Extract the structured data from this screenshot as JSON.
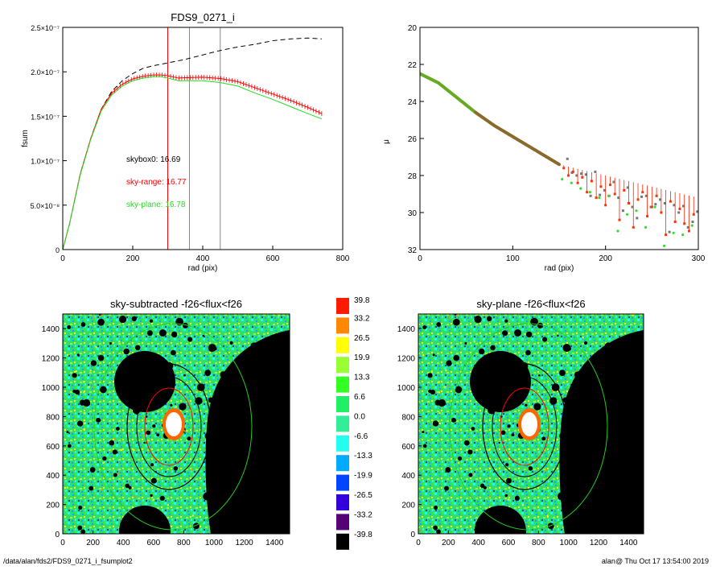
{
  "chart_data": [
    {
      "type": "line",
      "title": "FDS9_0271_i",
      "xlabel": "rad (pix)",
      "ylabel": "fsum",
      "xlim": [
        0,
        800
      ],
      "ylim": [
        0,
        2.5e-07
      ],
      "xticks": [
        "0",
        "200",
        "400",
        "600",
        "800"
      ],
      "yticks": [
        "0",
        "5.0×10⁻⁸",
        "1.0×10⁻⁷",
        "1.5×10⁻⁷",
        "2.0×10⁻⁷",
        "2.5×10⁻⁷"
      ],
      "vlines": [
        {
          "x": 300,
          "color": "#ff0000"
        },
        {
          "x": 362,
          "color": "#888888"
        },
        {
          "x": 450,
          "color": "#888888"
        }
      ],
      "annotations": [
        {
          "text": "skybox0: 16.69",
          "color": "#000000"
        },
        {
          "text": "sky-range: 16.77",
          "color": "#ff0000"
        },
        {
          "text": "sky-plane: 16.78",
          "color": "#22dd22"
        }
      ],
      "series": [
        {
          "color": "#000000",
          "style": "dashed",
          "x": [
            0,
            20,
            50,
            80,
            110,
            140,
            170,
            200,
            230,
            260,
            300,
            350,
            400,
            450,
            500,
            550,
            600,
            650,
            700,
            740
          ],
          "y": [
            0,
            3e-08,
            8.5e-08,
            1.25e-07,
            1.58e-07,
            1.78e-07,
            1.9e-07,
            1.98e-07,
            2.04e-07,
            2.07e-07,
            2.1e-07,
            2.14e-07,
            2.19e-07,
            2.24e-07,
            2.28e-07,
            2.31e-07,
            2.35e-07,
            2.37e-07,
            2.38e-07,
            2.37e-07
          ]
        },
        {
          "color": "#ff0000",
          "style": "errorbars",
          "x": [
            0,
            20,
            50,
            80,
            110,
            140,
            170,
            200,
            230,
            260,
            280,
            300,
            330,
            360,
            400,
            450,
            500,
            550,
            600,
            650,
            700,
            740
          ],
          "y": [
            0,
            3e-08,
            8.5e-08,
            1.25e-07,
            1.58e-07,
            1.76e-07,
            1.86e-07,
            1.92e-07,
            1.95e-07,
            1.965e-07,
            1.965e-07,
            1.955e-07,
            1.93e-07,
            1.935e-07,
            1.94e-07,
            1.925e-07,
            1.89e-07,
            1.82e-07,
            1.75e-07,
            1.68e-07,
            1.6e-07,
            1.53e-07
          ]
        },
        {
          "color": "#22dd22",
          "style": "solid",
          "x": [
            0,
            20,
            50,
            80,
            110,
            140,
            170,
            200,
            230,
            260,
            280,
            300,
            330,
            360,
            400,
            450,
            500,
            550,
            600,
            650,
            700,
            740
          ],
          "y": [
            0,
            3e-08,
            8.4e-08,
            1.24e-07,
            1.56e-07,
            1.74e-07,
            1.84e-07,
            1.9e-07,
            1.93e-07,
            1.945e-07,
            1.945e-07,
            1.93e-07,
            1.9e-07,
            1.9e-07,
            1.9e-07,
            1.88e-07,
            1.84e-07,
            1.76e-07,
            1.69e-07,
            1.61e-07,
            1.53e-07,
            1.47e-07
          ]
        }
      ]
    },
    {
      "type": "scatter",
      "title": "",
      "xlabel": "rad (pix)",
      "ylabel": "μ",
      "xlim": [
        0,
        300
      ],
      "ylim": [
        32,
        20
      ],
      "xticks": [
        "0",
        "100",
        "200",
        "300"
      ],
      "yticks": [
        "20",
        "22",
        "24",
        "26",
        "28",
        "30",
        "32"
      ],
      "trend": {
        "x": [
          0,
          20,
          40,
          60,
          80,
          100,
          120,
          140,
          150
        ],
        "y": [
          22.5,
          23.0,
          23.8,
          24.6,
          25.3,
          25.9,
          26.5,
          27.1,
          27.4
        ]
      },
      "scatter_points": [
        {
          "x": 155,
          "y": 27.6
        },
        {
          "x": 160,
          "y": 28.0
        },
        {
          "x": 165,
          "y": 27.8
        },
        {
          "x": 170,
          "y": 28.4
        },
        {
          "x": 175,
          "y": 28.1
        },
        {
          "x": 180,
          "y": 28.9
        },
        {
          "x": 185,
          "y": 28.3
        },
        {
          "x": 190,
          "y": 29.2
        },
        {
          "x": 195,
          "y": 28.6
        },
        {
          "x": 200,
          "y": 29.6
        },
        {
          "x": 205,
          "y": 28.5
        },
        {
          "x": 210,
          "y": 29.0
        },
        {
          "x": 215,
          "y": 30.4
        },
        {
          "x": 220,
          "y": 28.8
        },
        {
          "x": 225,
          "y": 29.5
        },
        {
          "x": 230,
          "y": 30.8
        },
        {
          "x": 235,
          "y": 29.3
        },
        {
          "x": 240,
          "y": 28.9
        },
        {
          "x": 245,
          "y": 30.2
        },
        {
          "x": 250,
          "y": 29.7
        },
        {
          "x": 255,
          "y": 29.1
        },
        {
          "x": 260,
          "y": 30.0
        },
        {
          "x": 265,
          "y": 31.2
        },
        {
          "x": 270,
          "y": 29.4
        },
        {
          "x": 275,
          "y": 30.5
        },
        {
          "x": 280,
          "y": 29.8
        },
        {
          "x": 285,
          "y": 30.6
        },
        {
          "x": 290,
          "y": 31.0
        },
        {
          "x": 295,
          "y": 30.1
        }
      ]
    },
    {
      "type": "heatmap",
      "title": "sky-subtracted -f26<flux<f26",
      "xlim": [
        0,
        1500
      ],
      "ylim": [
        0,
        1500
      ],
      "xticks": [
        "0",
        "200",
        "400",
        "600",
        "800",
        "1000",
        "1200",
        "1400"
      ],
      "yticks": [
        "0",
        "200",
        "400",
        "600",
        "800",
        "1000",
        "1200",
        "1400"
      ]
    },
    {
      "type": "heatmap",
      "title": "sky-plane -f26<flux<f26",
      "xlim": [
        0,
        1500
      ],
      "ylim": [
        0,
        1500
      ],
      "xticks": [
        "0",
        "200",
        "400",
        "600",
        "800",
        "1000",
        "1200",
        "1400"
      ],
      "yticks": [
        "0",
        "200",
        "400",
        "600",
        "800",
        "1000",
        "1200",
        "1400"
      ]
    }
  ],
  "colorbar": {
    "labels": [
      "39.8",
      "33.2",
      "26.5",
      "19.9",
      "13.3",
      "6.6",
      "0.0",
      "-6.6",
      "-13.3",
      "-19.9",
      "-26.5",
      "-33.2",
      "-39.8"
    ],
    "colors": [
      "#ff1a00",
      "#ff8800",
      "#ffff00",
      "#99ff33",
      "#33ff22",
      "#22ee66",
      "#33ee99",
      "#22ffee",
      "#00aaff",
      "#0044ff",
      "#3300dd",
      "#550077",
      "#000000"
    ]
  },
  "footer": {
    "path": "/data/alan/fds2/FDS9_0271_i_fsumplot2",
    "stamp": "alan@  Thu Oct 17 13:54:00 2019"
  }
}
